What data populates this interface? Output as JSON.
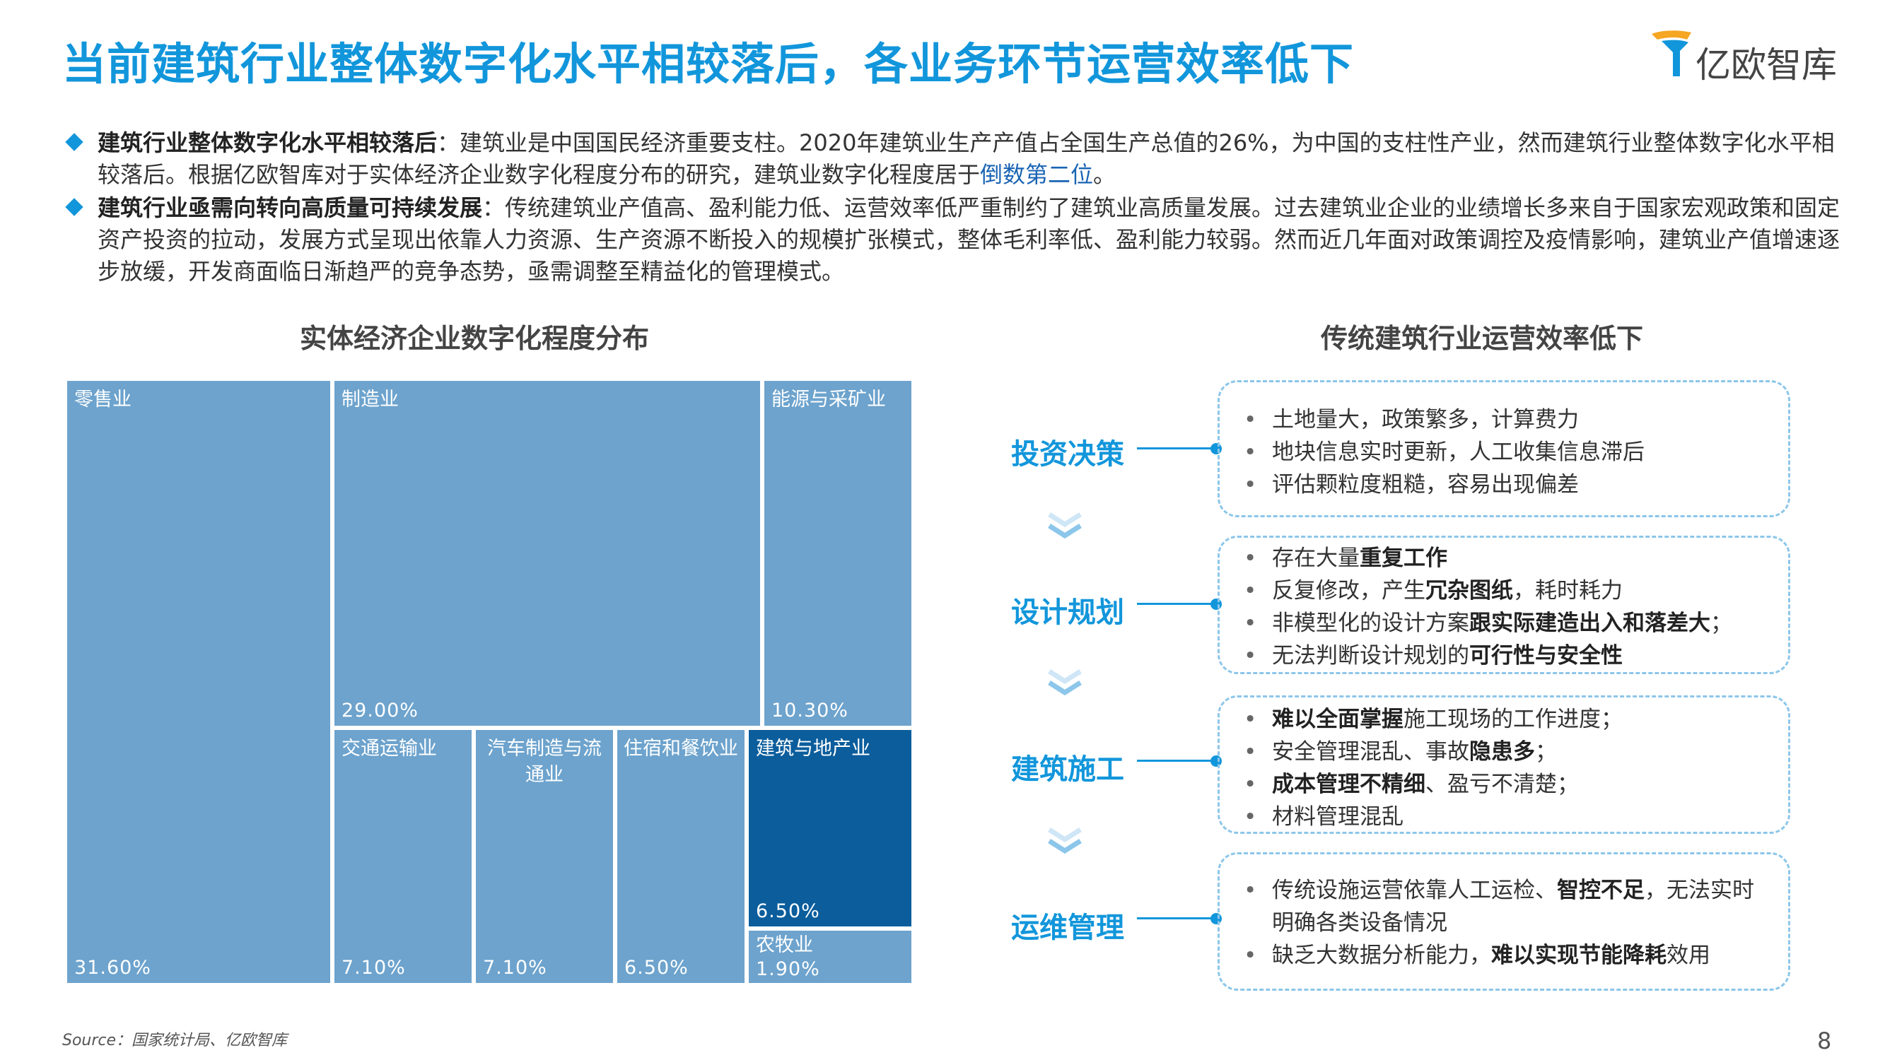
{
  "header": {
    "title": "当前建筑行业整体数字化水平相较落后，各业务环节运营效率低下",
    "logo_text": "亿欧智库",
    "brand_color": "#1296db"
  },
  "bullets": [
    {
      "bold": "建筑行业整体数字化水平相较落后",
      "text1": "：建筑业是中国国民经济重要支柱。2020年建筑业生产产值占全国生产总值的26%，为中国的支柱性产业，然而建筑行业整体数字化水平相较落后。根据亿欧智库对于实体经济企业数字化程度分布的研究，建筑业数字化程度居于",
      "highlight": "倒数第二位",
      "text2": "。"
    },
    {
      "bold": "建筑行业亟需向转向高质量可持续发展",
      "text1": "：传统建筑业产值高、盈利能力低、运营效率低严重制约了建筑业高质量发展。过去建筑业企业的业绩增长多来自于国家宏观政策和固定资产投资的拉动，发展方式呈现出依靠人力资源、生产资源不断投入的规模扩张模式，整体毛利率低、盈利能力较弱。然而近几年面对政策调控及疫情影响，建筑业产值增速逐步放缓，开发商面临日渐趋严的竞争态势，亟需调整至精益化的管理模式。"
    }
  ],
  "left_title": "实体经济企业数字化程度分布",
  "right_title": "传统建筑行业运营效率低下",
  "chart_data": {
    "type": "treemap",
    "title": "实体经济企业数字化程度分布",
    "highlight": "建筑与地产业",
    "colors": {
      "default": "#6da3cd",
      "highlight": "#0b5d9c"
    },
    "items": [
      {
        "name": "零售业",
        "label": "31.60%",
        "value": 31.6
      },
      {
        "name": "制造业",
        "label": "29.00%",
        "value": 29.0
      },
      {
        "name": "能源与采矿业",
        "label": "10.30%",
        "value": 10.3
      },
      {
        "name": "交通运输业",
        "label": "7.10%",
        "value": 7.1
      },
      {
        "name": "汽车制造与流通业",
        "label": "7.10%",
        "value": 7.1
      },
      {
        "name": "住宿和餐饮业",
        "label": "6.50%",
        "value": 6.5
      },
      {
        "name": "建筑与地产业",
        "label": "6.50%",
        "value": 6.5
      },
      {
        "name": "农牧业",
        "label": "1.90%",
        "value": 1.9
      }
    ]
  },
  "stages": [
    {
      "label": "投资决策",
      "items": [
        [
          {
            "t": "土地量大，政策繁多，计算费力"
          }
        ],
        [
          {
            "t": "地块信息实时更新，人工收集信息滞后"
          }
        ],
        [
          {
            "t": "评估颗粒度粗糙，容易出现偏差"
          }
        ]
      ]
    },
    {
      "label": "设计规划",
      "items": [
        [
          {
            "t": "存在大量"
          },
          {
            "t": "重复工作",
            "b": true
          }
        ],
        [
          {
            "t": "反复修改，产生"
          },
          {
            "t": "冗杂图纸",
            "b": true
          },
          {
            "t": "，耗时耗力"
          }
        ],
        [
          {
            "t": "非模型化的设计方案"
          },
          {
            "t": "跟实际建造出入和落差大",
            "b": true
          },
          {
            "t": "；"
          }
        ],
        [
          {
            "t": "无法判断设计规划的"
          },
          {
            "t": "可行性与安全性",
            "b": true
          }
        ]
      ]
    },
    {
      "label": "建筑施工",
      "items": [
        [
          {
            "t": "难以全面掌握",
            "b": true
          },
          {
            "t": "施工现场的工作进度；"
          }
        ],
        [
          {
            "t": "安全管理混乱、事故"
          },
          {
            "t": "隐患多",
            "b": true
          },
          {
            "t": "；"
          }
        ],
        [
          {
            "t": "成本管理不精细",
            "b": true
          },
          {
            "t": "、盈亏不清楚；"
          }
        ],
        [
          {
            "t": "材料管理混乱"
          }
        ]
      ]
    },
    {
      "label": "运维管理",
      "items": [
        [
          {
            "t": "传统设施运营依靠人工运检、"
          },
          {
            "t": "智控不足",
            "b": true
          },
          {
            "t": "，无法实时"
          }
        ],
        [
          {
            "t": "明确各类设备情况",
            "cont": true
          }
        ],
        [
          {
            "t": "缺乏大数据分析能力，"
          },
          {
            "t": "难以实现节能降耗",
            "b": true
          },
          {
            "t": "效用"
          }
        ]
      ]
    }
  ],
  "footer": {
    "source": "Source：国家统计局、亿欧智库",
    "page_number": "8"
  }
}
